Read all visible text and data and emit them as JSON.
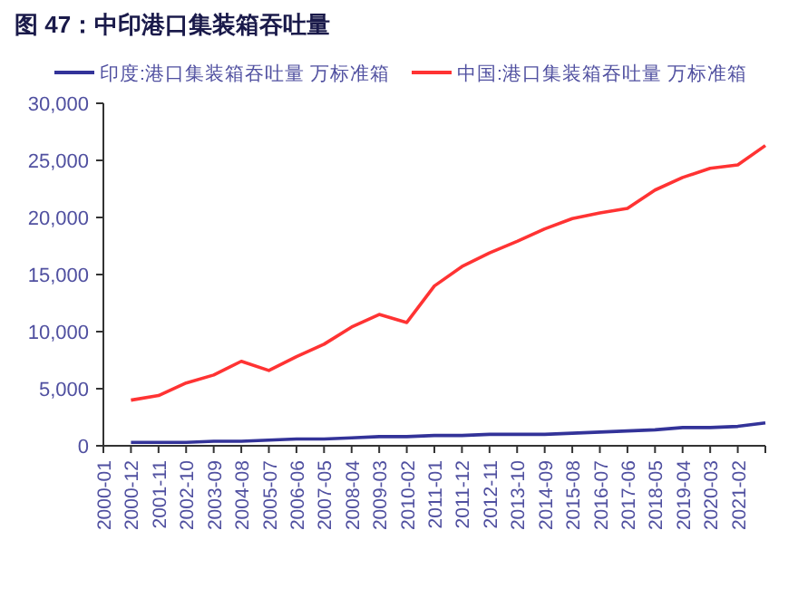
{
  "chart_data": {
    "type": "line",
    "title": "图 47：中印港口集装箱吞吐量",
    "categories": [
      "2000-01",
      "2000-12",
      "2001-11",
      "2002-10",
      "2003-09",
      "2004-08",
      "2005-07",
      "2006-06",
      "2007-05",
      "2008-04",
      "2009-03",
      "2010-02",
      "2011-01",
      "2011-12",
      "2012-11",
      "2013-10",
      "2014-09",
      "2015-08",
      "2016-07",
      "2017-06",
      "2018-05",
      "2019-04",
      "2020-03",
      "2021-02",
      null
    ],
    "series": [
      {
        "name": "印度:港口集装箱吞吐量 万标准箱",
        "color": "#333399",
        "values": [
          null,
          300,
          300,
          300,
          400,
          400,
          500,
          600,
          600,
          700,
          800,
          800,
          900,
          900,
          1000,
          1000,
          1000,
          1100,
          1200,
          1300,
          1400,
          1600,
          1600,
          1700,
          2000
        ]
      },
      {
        "name": "中国:港口集装箱吞吐量 万标准箱",
        "color": "#ff3333",
        "values": [
          null,
          4000,
          4400,
          5500,
          6200,
          7400,
          6600,
          7800,
          8900,
          10400,
          11500,
          10800,
          14000,
          15700,
          16900,
          17900,
          19000,
          19900,
          20400,
          20800,
          22400,
          23500,
          24300,
          24600,
          26300
        ]
      }
    ],
    "ylim": [
      0,
      30000
    ],
    "yticks": [
      0,
      {
        "value": 5000,
        "label": "5,000"
      },
      {
        "value": 10000,
        "label": "10,000"
      },
      {
        "value": 15000,
        "label": "15,000"
      },
      {
        "value": 20000,
        "label": "20,000"
      },
      {
        "value": 25000,
        "label": "25,000"
      },
      {
        "value": 30000,
        "label": "30,000"
      }
    ],
    "legend": "top",
    "grid": false,
    "marker": "none",
    "line_style": "solid"
  }
}
